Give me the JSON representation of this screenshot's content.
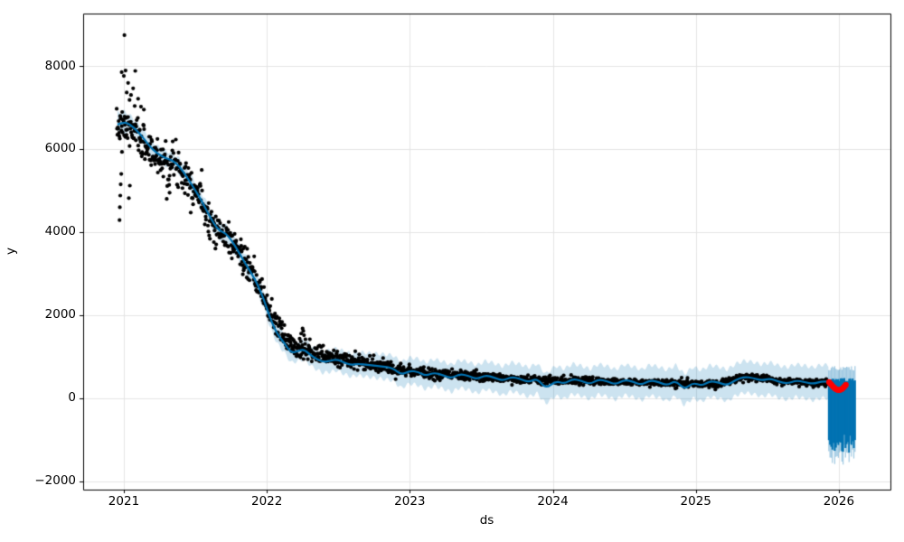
{
  "figure": {
    "background": "#ffffff"
  },
  "chart_data": {
    "type": "line",
    "subtype": "prophet_forecast_with_scatter_and_uncertainty_band",
    "title": "",
    "xlabel": "ds",
    "ylabel": "y",
    "xlim": [
      2020.7156,
      2026.3609
    ],
    "ylim": [
      -2196,
      9261
    ],
    "x_ticks": [
      2021,
      2022,
      2023,
      2024,
      2025,
      2026
    ],
    "x_tick_labels": [
      "2021",
      "2022",
      "2023",
      "2024",
      "2025",
      "2026"
    ],
    "y_ticks": [
      -2000,
      0,
      2000,
      4000,
      6000,
      8000
    ],
    "y_tick_labels": [
      "−2000",
      "0",
      "2000",
      "4000",
      "6000",
      "8000"
    ],
    "grid": true,
    "legend": "none",
    "colors": {
      "forecast_line": "#0072b2",
      "band_fill": "#0072b2",
      "band_alpha": 0.2,
      "tail_band_alpha": 0.38,
      "scatter": "#000000",
      "recent_red": "#ff0000",
      "grid": "#e5e5e5",
      "spine": "#000000",
      "text": "#000000"
    },
    "forecast_trend_yhat": [
      [
        2020.955,
        6590
      ],
      [
        2021.0,
        6650
      ],
      [
        2021.04,
        6600
      ],
      [
        2021.09,
        6450
      ],
      [
        2021.14,
        6250
      ],
      [
        2021.19,
        6030
      ],
      [
        2021.24,
        5880
      ],
      [
        2021.29,
        5780
      ],
      [
        2021.34,
        5730
      ],
      [
        2021.39,
        5580
      ],
      [
        2021.44,
        5330
      ],
      [
        2021.49,
        5060
      ],
      [
        2021.54,
        4780
      ],
      [
        2021.59,
        4450
      ],
      [
        2021.63,
        4200
      ],
      [
        2021.67,
        4030
      ],
      [
        2021.71,
        3980
      ],
      [
        2021.75,
        3820
      ],
      [
        2021.79,
        3600
      ],
      [
        2021.84,
        3300
      ],
      [
        2021.89,
        3020
      ],
      [
        2021.93,
        2780
      ],
      [
        2021.98,
        2380
      ],
      [
        2022.02,
        1950
      ],
      [
        2022.07,
        1560
      ],
      [
        2022.12,
        1340
      ],
      [
        2022.17,
        1090
      ],
      [
        2022.22,
        1140
      ],
      [
        2022.26,
        1180
      ],
      [
        2022.32,
        1000
      ],
      [
        2022.39,
        870
      ],
      [
        2022.45,
        905
      ],
      [
        2022.49,
        940
      ],
      [
        2022.54,
        860
      ],
      [
        2022.59,
        800
      ],
      [
        2022.63,
        835
      ],
      [
        2022.72,
        800
      ],
      [
        2022.8,
        770
      ],
      [
        2022.88,
        735
      ],
      [
        2022.94,
        560
      ],
      [
        2023.0,
        670
      ],
      [
        2023.06,
        635
      ],
      [
        2023.11,
        540
      ],
      [
        2023.17,
        620
      ],
      [
        2023.23,
        560
      ],
      [
        2023.29,
        480
      ],
      [
        2023.35,
        590
      ],
      [
        2023.41,
        540
      ],
      [
        2023.47,
        460
      ],
      [
        2023.53,
        560
      ],
      [
        2023.59,
        500
      ],
      [
        2023.65,
        420
      ],
      [
        2023.71,
        520
      ],
      [
        2023.77,
        470
      ],
      [
        2023.83,
        390
      ],
      [
        2023.89,
        480
      ],
      [
        2023.95,
        230
      ],
      [
        2024.02,
        420
      ],
      [
        2024.08,
        350
      ],
      [
        2024.14,
        470
      ],
      [
        2024.2,
        420
      ],
      [
        2024.26,
        340
      ],
      [
        2024.32,
        460
      ],
      [
        2024.38,
        410
      ],
      [
        2024.44,
        330
      ],
      [
        2024.5,
        450
      ],
      [
        2024.56,
        400
      ],
      [
        2024.62,
        320
      ],
      [
        2024.68,
        440
      ],
      [
        2024.74,
        390
      ],
      [
        2024.8,
        310
      ],
      [
        2024.86,
        430
      ],
      [
        2024.92,
        210
      ],
      [
        2024.98,
        380
      ],
      [
        2025.04,
        300
      ],
      [
        2025.1,
        420
      ],
      [
        2025.16,
        380
      ],
      [
        2025.22,
        310
      ],
      [
        2025.28,
        450
      ],
      [
        2025.34,
        520
      ],
      [
        2025.4,
        490
      ],
      [
        2025.46,
        430
      ],
      [
        2025.52,
        480
      ],
      [
        2025.58,
        400
      ],
      [
        2025.64,
        355
      ],
      [
        2025.7,
        430
      ],
      [
        2025.76,
        395
      ],
      [
        2025.82,
        345
      ],
      [
        2025.88,
        410
      ],
      [
        2025.93,
        400
      ]
    ],
    "uncertainty_halfwidth": [
      [
        2020.955,
        290
      ],
      [
        2021.1,
        180
      ],
      [
        2021.3,
        175
      ],
      [
        2021.5,
        190
      ],
      [
        2021.7,
        200
      ],
      [
        2021.9,
        210
      ],
      [
        2022.1,
        225
      ],
      [
        2022.3,
        245
      ],
      [
        2022.6,
        280
      ],
      [
        2023.0,
        315
      ],
      [
        2023.5,
        340
      ],
      [
        2024.0,
        360
      ],
      [
        2024.5,
        365
      ],
      [
        2025.0,
        375
      ],
      [
        2025.5,
        385
      ],
      [
        2025.93,
        400
      ]
    ],
    "band_ripple": {
      "amplitude": 45,
      "freq_per_year": 21,
      "phase_upper": 1.3,
      "phase_lower": 0.4
    },
    "scatter_model": {
      "seed": 7,
      "x_start": 2020.95,
      "x_end": 2025.92,
      "points_per_year": 365,
      "marker": "black dot",
      "center_anchors": [
        [
          2020.95,
          6500
        ],
        [
          2021.0,
          6550
        ],
        [
          2021.08,
          6400
        ],
        [
          2021.15,
          6100
        ],
        [
          2021.22,
          5850
        ],
        [
          2021.3,
          5700
        ],
        [
          2021.38,
          5600
        ],
        [
          2021.45,
          5300
        ],
        [
          2021.52,
          4950
        ],
        [
          2021.6,
          4350
        ],
        [
          2021.68,
          3950
        ],
        [
          2021.75,
          3800
        ],
        [
          2021.82,
          3450
        ],
        [
          2021.9,
          2950
        ],
        [
          2021.97,
          2500
        ],
        [
          2022.02,
          2100
        ],
        [
          2022.08,
          1700
        ],
        [
          2022.14,
          1400
        ],
        [
          2022.2,
          1250
        ],
        [
          2022.28,
          1180
        ],
        [
          2022.35,
          1050
        ],
        [
          2022.45,
          980
        ],
        [
          2022.55,
          930
        ],
        [
          2022.65,
          870
        ],
        [
          2022.75,
          800
        ],
        [
          2022.85,
          750
        ],
        [
          2022.95,
          690
        ],
        [
          2023.05,
          640
        ],
        [
          2023.2,
          570
        ],
        [
          2023.35,
          545
        ],
        [
          2023.5,
          520
        ],
        [
          2023.65,
          495
        ],
        [
          2023.8,
          460
        ],
        [
          2023.95,
          420
        ],
        [
          2024.1,
          430
        ],
        [
          2024.25,
          420
        ],
        [
          2024.4,
          405
        ],
        [
          2024.55,
          390
        ],
        [
          2024.7,
          385
        ],
        [
          2024.85,
          370
        ],
        [
          2025.0,
          345
        ],
        [
          2025.1,
          330
        ],
        [
          2025.2,
          365
        ],
        [
          2025.3,
          490
        ],
        [
          2025.38,
          530
        ],
        [
          2025.48,
          480
        ],
        [
          2025.58,
          410
        ],
        [
          2025.68,
          420
        ],
        [
          2025.78,
          390
        ],
        [
          2025.92,
          370
        ]
      ],
      "noise_sd_anchors": [
        [
          2020.95,
          170
        ],
        [
          2021.05,
          200
        ],
        [
          2021.15,
          230
        ],
        [
          2021.3,
          260
        ],
        [
          2021.5,
          230
        ],
        [
          2021.7,
          200
        ],
        [
          2021.9,
          170
        ],
        [
          2022.05,
          150
        ],
        [
          2022.2,
          130
        ],
        [
          2022.4,
          100
        ],
        [
          2022.7,
          85
        ],
        [
          2023.0,
          65
        ],
        [
          2023.4,
          55
        ],
        [
          2023.8,
          48
        ],
        [
          2024.2,
          42
        ],
        [
          2025.0,
          40
        ],
        [
          2025.5,
          42
        ],
        [
          2025.92,
          40
        ]
      ],
      "explicit_outliers": [
        [
          2021.004,
          8740
        ],
        [
          2020.985,
          7850
        ],
        [
          2021.0,
          7760
        ],
        [
          2021.012,
          7890
        ],
        [
          2021.03,
          7590
        ],
        [
          2021.02,
          7360
        ],
        [
          2021.04,
          7180
        ],
        [
          2021.05,
          7300
        ],
        [
          2021.065,
          7460
        ],
        [
          2021.08,
          7880
        ],
        [
          2021.1,
          7210
        ],
        [
          2021.12,
          7020
        ],
        [
          2021.14,
          6950
        ],
        [
          2020.97,
          4290
        ],
        [
          2020.972,
          4600
        ],
        [
          2020.975,
          4880
        ],
        [
          2020.978,
          5150
        ],
        [
          2020.982,
          5400
        ],
        [
          2020.987,
          5930
        ],
        [
          2021.035,
          4820
        ],
        [
          2021.042,
          5120
        ],
        [
          2021.3,
          4800
        ],
        [
          2021.32,
          4950
        ],
        [
          2022.24,
          1560
        ],
        [
          2022.25,
          1680
        ],
        [
          2022.255,
          1620
        ],
        [
          2022.26,
          1520
        ],
        [
          2022.27,
          1420
        ]
      ]
    },
    "recent_red_points": [
      [
        2025.932,
        390
      ],
      [
        2025.941,
        355
      ],
      [
        2025.95,
        320
      ],
      [
        2025.959,
        285
      ],
      [
        2025.968,
        255
      ],
      [
        2025.977,
        230
      ],
      [
        2025.986,
        212
      ],
      [
        2025.995,
        202
      ],
      [
        2026.004,
        200
      ],
      [
        2026.013,
        210
      ],
      [
        2026.022,
        228
      ],
      [
        2026.031,
        255
      ],
      [
        2026.04,
        290
      ],
      [
        2026.049,
        325
      ]
    ],
    "forecast_tail": {
      "x_start": 2025.93,
      "x_end": 2026.115,
      "points_per_year": 120,
      "yhat_top_range": [
        415,
        490
      ],
      "yhat_bottom_range": [
        -1350,
        -850
      ],
      "band_top_range": [
        670,
        780
      ],
      "band_bottom_extra_range": [
        180,
        330
      ]
    }
  }
}
